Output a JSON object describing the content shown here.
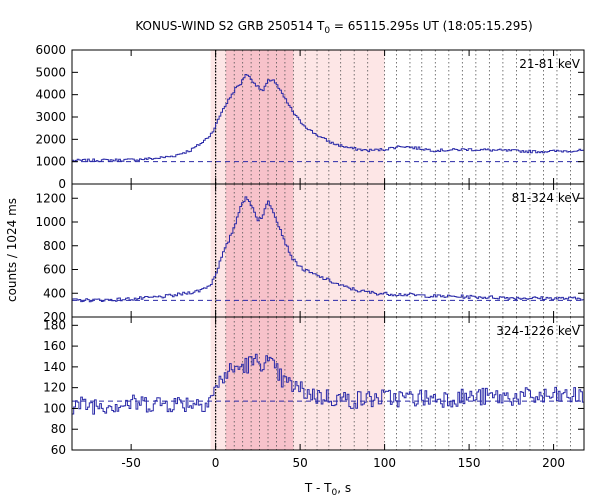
{
  "title_main": "KONUS-WIND S2 GRB 250514 T",
  "title_sub": "0",
  "title_rest": " = 65115.295s UT (18:05:15.295)",
  "ylabel": "counts / 1024 ms",
  "xlabel_main": "T - T",
  "xlabel_sub": "0",
  "xlabel_rest": ", s",
  "colors": {
    "line": "#2a2aa8",
    "band_light": "#fde6e6",
    "band_dark": "#f7c2ca"
  },
  "chart_data": [
    {
      "type": "line",
      "panel": "21-81 keV",
      "xlim": [
        -85,
        218
      ],
      "ylim": [
        0,
        6000
      ],
      "yticks": [
        0,
        1000,
        2000,
        3000,
        4000,
        5000,
        6000
      ],
      "background": 1000,
      "points": [
        [
          -85,
          1050
        ],
        [
          -70,
          1060
        ],
        [
          -50,
          1080
        ],
        [
          -35,
          1150
        ],
        [
          -25,
          1250
        ],
        [
          -15,
          1500
        ],
        [
          -8,
          1850
        ],
        [
          -3,
          2200
        ],
        [
          0,
          2600
        ],
        [
          4,
          3300
        ],
        [
          8,
          3800
        ],
        [
          12,
          4300
        ],
        [
          15,
          4500
        ],
        [
          18,
          4950
        ],
        [
          21,
          4700
        ],
        [
          25,
          4350
        ],
        [
          28,
          4150
        ],
        [
          31,
          4600
        ],
        [
          34,
          4700
        ],
        [
          38,
          4200
        ],
        [
          42,
          3700
        ],
        [
          46,
          3200
        ],
        [
          50,
          2800
        ],
        [
          56,
          2400
        ],
        [
          62,
          2100
        ],
        [
          70,
          1800
        ],
        [
          80,
          1600
        ],
        [
          90,
          1500
        ],
        [
          100,
          1550
        ],
        [
          110,
          1700
        ],
        [
          120,
          1600
        ],
        [
          130,
          1500
        ],
        [
          150,
          1550
        ],
        [
          170,
          1500
        ],
        [
          190,
          1450
        ],
        [
          218,
          1500
        ]
      ],
      "noise": 60
    },
    {
      "type": "line",
      "panel": "81-324 keV",
      "xlim": [
        -85,
        218
      ],
      "ylim": [
        200,
        1320
      ],
      "yticks": [
        200,
        400,
        600,
        800,
        1000,
        1200
      ],
      "background": 340,
      "points": [
        [
          -85,
          340
        ],
        [
          -60,
          345
        ],
        [
          -40,
          360
        ],
        [
          -25,
          380
        ],
        [
          -10,
          420
        ],
        [
          -3,
          470
        ],
        [
          0,
          560
        ],
        [
          4,
          720
        ],
        [
          8,
          850
        ],
        [
          12,
          1000
        ],
        [
          15,
          1150
        ],
        [
          18,
          1200
        ],
        [
          21,
          1150
        ],
        [
          25,
          1020
        ],
        [
          28,
          1050
        ],
        [
          31,
          1180
        ],
        [
          34,
          1100
        ],
        [
          38,
          950
        ],
        [
          42,
          800
        ],
        [
          46,
          680
        ],
        [
          52,
          600
        ],
        [
          58,
          560
        ],
        [
          65,
          520
        ],
        [
          75,
          460
        ],
        [
          85,
          420
        ],
        [
          95,
          400
        ],
        [
          110,
          390
        ],
        [
          130,
          375
        ],
        [
          150,
          370
        ],
        [
          180,
          360
        ],
        [
          218,
          355
        ]
      ],
      "noise": 14
    },
    {
      "type": "line",
      "panel": "324-1226 keV",
      "xlim": [
        -85,
        218
      ],
      "ylim": [
        60,
        188
      ],
      "yticks": [
        60,
        80,
        100,
        120,
        140,
        160,
        180
      ],
      "background": 107,
      "points": [
        [
          -85,
          103
        ],
        [
          -60,
          104
        ],
        [
          -40,
          105
        ],
        [
          -20,
          105
        ],
        [
          -5,
          106
        ],
        [
          0,
          118
        ],
        [
          5,
          132
        ],
        [
          10,
          137
        ],
        [
          15,
          140
        ],
        [
          20,
          143
        ],
        [
          25,
          145
        ],
        [
          30,
          145
        ],
        [
          35,
          138
        ],
        [
          40,
          126
        ],
        [
          50,
          118
        ],
        [
          60,
          112
        ],
        [
          80,
          108
        ],
        [
          100,
          110
        ],
        [
          130,
          110
        ],
        [
          160,
          111
        ],
        [
          190,
          111
        ],
        [
          218,
          112
        ]
      ],
      "noise": 9
    }
  ],
  "xticks": [
    -50,
    0,
    50,
    100,
    150,
    200
  ],
  "shaded_interval": [
    -3,
    100
  ],
  "inner_interval": [
    6,
    46
  ],
  "grid_lines": [
    0,
    6,
    11,
    16,
    21,
    26,
    31,
    36,
    41,
    46,
    53,
    60,
    67,
    74,
    82,
    90,
    100,
    107,
    115,
    122,
    130,
    138,
    146,
    154,
    162,
    170,
    178,
    186,
    194,
    202,
    210
  ]
}
